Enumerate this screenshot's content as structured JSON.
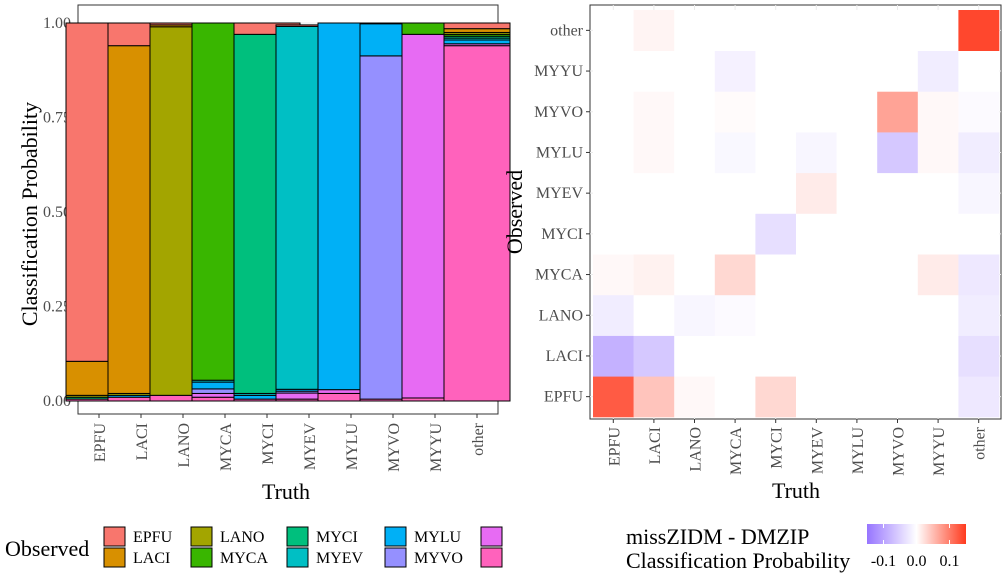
{
  "chart_data": [
    {
      "type": "bar",
      "stacked": true,
      "xlabel": "Truth",
      "ylabel": "Classification Probability",
      "ylim": [
        0,
        1
      ],
      "yticks": [
        "0.00",
        "0.25",
        "0.50",
        "0.75",
        "1.00"
      ],
      "categories": [
        "EPFU",
        "LACI",
        "LANO",
        "MYCA",
        "MYCI",
        "MYEV",
        "MYLU",
        "MYVO",
        "MYYU",
        "other"
      ],
      "series": [
        {
          "name": "EPFU",
          "color": "#F8766D",
          "values": [
            0.895,
            0.06,
            0.005,
            0.0,
            0.03,
            0.004,
            0.0,
            0.002,
            0.0,
            0.015
          ]
        },
        {
          "name": "LACI",
          "color": "#D89000",
          "values": [
            0.09,
            0.92,
            0.005,
            0.0,
            0.0,
            0.0,
            0.0,
            0.0,
            0.0,
            0.01
          ]
        },
        {
          "name": "LANO",
          "color": "#A3A500",
          "values": [
            0.005,
            0.005,
            0.975,
            0.0,
            0.0,
            0.0,
            0.0,
            0.0,
            0.0,
            0.005
          ]
        },
        {
          "name": "MYCA",
          "color": "#39B600",
          "values": [
            0.0,
            0.0,
            0.0,
            0.945,
            0.0,
            0.0,
            0.0,
            0.0,
            0.03,
            0.005
          ]
        },
        {
          "name": "MYCI",
          "color": "#00BF7D",
          "values": [
            0.005,
            0.0,
            0.0,
            0.0,
            0.95,
            0.0,
            0.0,
            0.0,
            0.0,
            0.005
          ]
        },
        {
          "name": "MYEV",
          "color": "#00BFC4",
          "values": [
            0.0,
            0.0,
            0.0,
            0.005,
            0.005,
            0.96,
            0.0,
            0.0,
            0.0,
            0.005
          ]
        },
        {
          "name": "MYLU",
          "color": "#00B0F6",
          "values": [
            0.0,
            0.005,
            0.0,
            0.018,
            0.01,
            0.005,
            0.97,
            0.085,
            0.0,
            0.01
          ]
        },
        {
          "name": "MYVO",
          "color": "#9590FF",
          "values": [
            0.0,
            0.0,
            0.0,
            0.012,
            0.0,
            0.005,
            0.0,
            0.908,
            0.0,
            0.0
          ]
        },
        {
          "name": "MYYU",
          "color": "#E76BF3",
          "values": [
            0.0,
            0.0,
            0.0,
            0.01,
            0.0,
            0.016,
            0.01,
            0.0,
            0.962,
            0.005
          ]
        },
        {
          "name": "other",
          "color": "#FF62BC",
          "values": [
            0.005,
            0.01,
            0.015,
            0.01,
            0.005,
            0.005,
            0.02,
            0.005,
            0.008,
            0.94
          ]
        }
      ],
      "legend": {
        "title": "Observed",
        "position": "bottom",
        "entries": [
          "EPFU",
          "LACI",
          "LANO",
          "MYCA",
          "MYCI",
          "MYEV",
          "MYLU",
          "MYVO",
          "",
          ""
        ]
      }
    },
    {
      "type": "heatmap",
      "xlabel": "Truth",
      "ylabel": "Observed",
      "x": [
        "EPFU",
        "LACI",
        "LANO",
        "MYCA",
        "MYCI",
        "MYEV",
        "MYLU",
        "MYVO",
        "MYYU",
        "other"
      ],
      "y": [
        "EPFU",
        "LACI",
        "LANO",
        "MYCA",
        "MYCI",
        "MYEV",
        "MYLU",
        "MYVO",
        "MYYU",
        "other"
      ],
      "values": [
        [
          0.125,
          0.045,
          0.005,
          0.0,
          0.03,
          0.0,
          0.0,
          0.0,
          0.0,
          -0.025
        ],
        [
          -0.085,
          -0.06,
          0.0,
          0.0,
          0.0,
          0.0,
          0.0,
          0.0,
          0.0,
          -0.035
        ],
        [
          -0.02,
          0.0,
          -0.01,
          -0.005,
          0.0,
          0.0,
          0.0,
          0.0,
          0.0,
          -0.02
        ],
        [
          0.005,
          0.01,
          0.0,
          0.03,
          0.0,
          0.0,
          0.0,
          0.0,
          0.015,
          -0.025
        ],
        [
          0.0,
          0.0,
          0.0,
          0.0,
          -0.035,
          0.0,
          0.0,
          0.0,
          0.0,
          0.0
        ],
        [
          0.0,
          0.0,
          0.0,
          0.0,
          0.0,
          0.015,
          0.0,
          0.0,
          0.0,
          -0.01
        ],
        [
          0.0,
          0.005,
          0.0,
          -0.008,
          0.0,
          -0.01,
          0.0,
          -0.06,
          0.005,
          -0.02
        ],
        [
          0.0,
          0.005,
          0.0,
          0.003,
          0.0,
          0.0,
          0.0,
          0.07,
          0.005,
          -0.005
        ],
        [
          0.0,
          0.0,
          0.0,
          -0.015,
          0.0,
          0.0,
          0.0,
          0.0,
          -0.02,
          0.0
        ],
        [
          0.0,
          0.008,
          0.0,
          0.0,
          0.0,
          0.0,
          0.0,
          0.0,
          0.0,
          0.14
        ]
      ],
      "color_scale": {
        "low": "#9775FF",
        "mid": "#FFFFFF",
        "high": "#FF3A1E",
        "min": -0.15,
        "max": 0.15
      },
      "legend": {
        "title_lines": [
          "missZIDM - DMZIP",
          "Classification Probability"
        ],
        "ticks": [
          "-0.1",
          "0.0",
          "0.1"
        ],
        "tick_values": [
          -0.1,
          0.0,
          0.1
        ],
        "position": "bottom"
      }
    }
  ]
}
